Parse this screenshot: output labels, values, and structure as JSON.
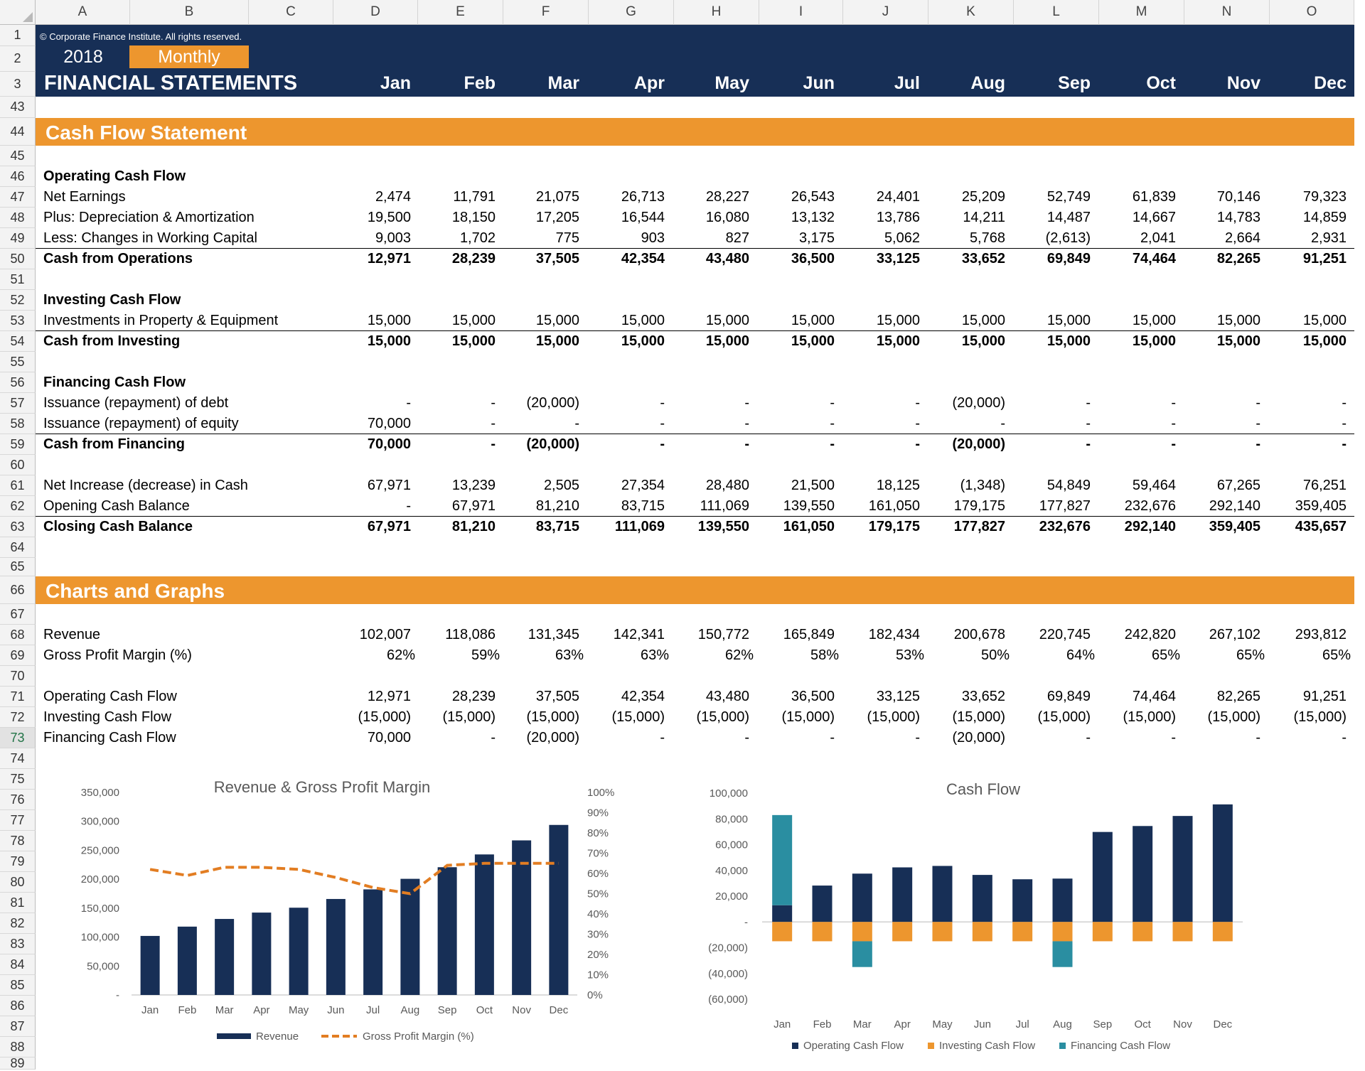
{
  "columns": [
    "A",
    "B",
    "C",
    "D",
    "E",
    "F",
    "G",
    "H",
    "I",
    "J",
    "K",
    "L",
    "M",
    "N",
    "O"
  ],
  "rows": [
    "1",
    "2",
    "3",
    "43",
    "44",
    "45",
    "46",
    "47",
    "48",
    "49",
    "50",
    "51",
    "52",
    "53",
    "54",
    "55",
    "56",
    "57",
    "58",
    "59",
    "60",
    "61",
    "62",
    "63",
    "64",
    "65",
    "66",
    "67",
    "68",
    "69",
    "70",
    "71",
    "72",
    "73",
    "74",
    "75",
    "76",
    "77",
    "78",
    "79",
    "80",
    "81",
    "82",
    "83",
    "84",
    "85",
    "86",
    "87",
    "88",
    "89"
  ],
  "active_row": "73",
  "header": {
    "copyright": "© Corporate Finance Institute. All rights reserved.",
    "year": "2018",
    "period": "Monthly",
    "title": "FINANCIAL STATEMENTS",
    "months": [
      "Jan",
      "Feb",
      "Mar",
      "Apr",
      "May",
      "Jun",
      "Jul",
      "Aug",
      "Sep",
      "Oct",
      "Nov",
      "Dec"
    ]
  },
  "cash_flow_section": {
    "title": "Cash Flow Statement",
    "operating_heading": "Operating Cash Flow",
    "net_earnings": {
      "label": "Net Earnings",
      "values": [
        "2,474",
        "11,791",
        "21,075",
        "26,713",
        "28,227",
        "26,543",
        "24,401",
        "25,209",
        "52,749",
        "61,839",
        "70,146",
        "79,323"
      ]
    },
    "depreciation": {
      "label": "Plus: Depreciation & Amortization",
      "values": [
        "19,500",
        "18,150",
        "17,205",
        "16,544",
        "16,080",
        "13,132",
        "13,786",
        "14,211",
        "14,487",
        "14,667",
        "14,783",
        "14,859"
      ]
    },
    "working_capital": {
      "label": "Less: Changes in Working Capital",
      "values": [
        "9,003",
        "1,702",
        "775",
        "903",
        "827",
        "3,175",
        "5,062",
        "5,768",
        "(2,613)",
        "2,041",
        "2,664",
        "2,931"
      ]
    },
    "cash_operations": {
      "label": "Cash from Operations",
      "values": [
        "12,971",
        "28,239",
        "37,505",
        "42,354",
        "43,480",
        "36,500",
        "33,125",
        "33,652",
        "69,849",
        "74,464",
        "82,265",
        "91,251"
      ]
    },
    "investing_heading": "Investing Cash Flow",
    "investments": {
      "label": "Investments in Property & Equipment",
      "values": [
        "15,000",
        "15,000",
        "15,000",
        "15,000",
        "15,000",
        "15,000",
        "15,000",
        "15,000",
        "15,000",
        "15,000",
        "15,000",
        "15,000"
      ]
    },
    "cash_investing": {
      "label": "Cash from Investing",
      "values": [
        "15,000",
        "15,000",
        "15,000",
        "15,000",
        "15,000",
        "15,000",
        "15,000",
        "15,000",
        "15,000",
        "15,000",
        "15,000",
        "15,000"
      ]
    },
    "financing_heading": "Financing Cash Flow",
    "debt": {
      "label": "Issuance (repayment) of debt",
      "values": [
        "-",
        "-",
        "(20,000)",
        "-",
        "-",
        "-",
        "-",
        "(20,000)",
        "-",
        "-",
        "-",
        "-"
      ]
    },
    "equity": {
      "label": "Issuance (repayment) of equity",
      "values": [
        "70,000",
        "-",
        "-",
        "-",
        "-",
        "-",
        "-",
        "-",
        "-",
        "-",
        "-",
        "-"
      ]
    },
    "cash_financing": {
      "label": "Cash from Financing",
      "values": [
        "70,000",
        "-",
        "(20,000)",
        "-",
        "-",
        "-",
        "-",
        "(20,000)",
        "-",
        "-",
        "-",
        "-"
      ]
    },
    "net_increase": {
      "label": "Net Increase (decrease) in Cash",
      "values": [
        "67,971",
        "13,239",
        "2,505",
        "27,354",
        "28,480",
        "21,500",
        "18,125",
        "(1,348)",
        "54,849",
        "59,464",
        "67,265",
        "76,251"
      ]
    },
    "opening_balance": {
      "label": "Opening Cash Balance",
      "values": [
        "-",
        "67,971",
        "81,210",
        "83,715",
        "111,069",
        "139,550",
        "161,050",
        "179,175",
        "177,827",
        "232,676",
        "292,140",
        "359,405"
      ]
    },
    "closing_balance": {
      "label": "Closing Cash Balance",
      "values": [
        "67,971",
        "81,210",
        "83,715",
        "111,069",
        "139,550",
        "161,050",
        "179,175",
        "177,827",
        "232,676",
        "292,140",
        "359,405",
        "435,657"
      ]
    }
  },
  "charts_section": {
    "title": "Charts and Graphs",
    "revenue": {
      "label": "Revenue",
      "values": [
        "102,007",
        "118,086",
        "131,345",
        "142,341",
        "150,772",
        "165,849",
        "182,434",
        "200,678",
        "220,745",
        "242,820",
        "267,102",
        "293,812"
      ]
    },
    "gross_margin": {
      "label": "Gross Profit Margin (%)",
      "values": [
        "62%",
        "59%",
        "63%",
        "63%",
        "62%",
        "58%",
        "53%",
        "50%",
        "64%",
        "65%",
        "65%",
        "65%"
      ]
    },
    "operating": {
      "label": "Operating Cash Flow",
      "values": [
        "12,971",
        "28,239",
        "37,505",
        "42,354",
        "43,480",
        "36,500",
        "33,125",
        "33,652",
        "69,849",
        "74,464",
        "82,265",
        "91,251"
      ]
    },
    "investing": {
      "label": "Investing Cash Flow",
      "values": [
        "(15,000)",
        "(15,000)",
        "(15,000)",
        "(15,000)",
        "(15,000)",
        "(15,000)",
        "(15,000)",
        "(15,000)",
        "(15,000)",
        "(15,000)",
        "(15,000)",
        "(15,000)"
      ]
    },
    "financing": {
      "label": "Financing Cash Flow",
      "values": [
        "70,000",
        "-",
        "(20,000)",
        "-",
        "-",
        "-",
        "-",
        "(20,000)",
        "-",
        "-",
        "-",
        "-"
      ]
    }
  },
  "colors": {
    "navy": "#172f56",
    "orange": "#ed962e",
    "teal": "#2a8ea1",
    "dash_orange": "#e27d22"
  },
  "chart_data": [
    {
      "type": "bar",
      "title": "Revenue & Gross Profit Margin",
      "categories": [
        "Jan",
        "Feb",
        "Mar",
        "Apr",
        "May",
        "Jun",
        "Jul",
        "Aug",
        "Sep",
        "Oct",
        "Nov",
        "Dec"
      ],
      "series": [
        {
          "name": "Revenue",
          "kind": "bar",
          "axis": "left",
          "values": [
            102007,
            118086,
            131345,
            142341,
            150772,
            165849,
            182434,
            200678,
            220745,
            242820,
            267102,
            293812
          ]
        },
        {
          "name": "Gross Profit Margin (%)",
          "kind": "line-dashed",
          "axis": "right",
          "values": [
            62,
            59,
            63,
            63,
            62,
            58,
            53,
            50,
            64,
            65,
            65,
            65
          ]
        }
      ],
      "ylim": [
        0,
        350000
      ],
      "y_ticks": [
        "-",
        "50,000",
        "100,000",
        "150,000",
        "200,000",
        "250,000",
        "300,000",
        "350,000"
      ],
      "y2lim": [
        0,
        100
      ],
      "y2_ticks": [
        "0%",
        "10%",
        "20%",
        "30%",
        "40%",
        "50%",
        "60%",
        "70%",
        "80%",
        "90%",
        "100%"
      ],
      "legend": "bottom",
      "grid": false
    },
    {
      "type": "bar",
      "title": "Cash Flow",
      "stacked": true,
      "categories": [
        "Jan",
        "Feb",
        "Mar",
        "Apr",
        "May",
        "Jun",
        "Jul",
        "Aug",
        "Sep",
        "Oct",
        "Nov",
        "Dec"
      ],
      "series": [
        {
          "name": "Operating Cash Flow",
          "values": [
            12971,
            28239,
            37505,
            42354,
            43480,
            36500,
            33125,
            33652,
            69849,
            74464,
            82265,
            91251
          ]
        },
        {
          "name": "Investing Cash Flow",
          "values": [
            -15000,
            -15000,
            -15000,
            -15000,
            -15000,
            -15000,
            -15000,
            -15000,
            -15000,
            -15000,
            -15000,
            -15000
          ]
        },
        {
          "name": "Financing Cash Flow",
          "values": [
            70000,
            0,
            -20000,
            0,
            0,
            0,
            0,
            -20000,
            0,
            0,
            0,
            0
          ]
        }
      ],
      "ylim": [
        -60000,
        100000
      ],
      "y_ticks": [
        "(60,000)",
        "(40,000)",
        "(20,000)",
        "-",
        "20,000",
        "40,000",
        "60,000",
        "80,000",
        "100,000"
      ],
      "legend": "bottom",
      "grid": false
    }
  ]
}
